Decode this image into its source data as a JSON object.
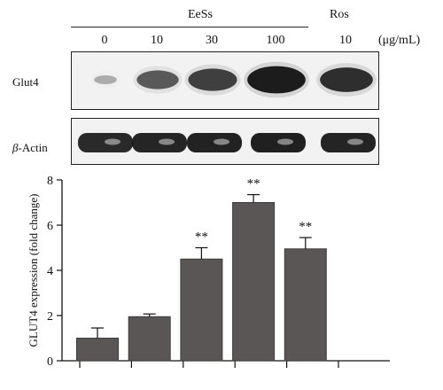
{
  "figure": {
    "header": {
      "group_eess": "EeSs",
      "group_ros": "Ros",
      "unit": "(μg/mL)",
      "lanes": [
        "0",
        "10",
        "30",
        "100",
        "10"
      ]
    },
    "blots": {
      "glut4_label": "Glut4",
      "beta_actin_label_prefix": "β",
      "beta_actin_label_suffix": "-Actin",
      "glut4_intensity": [
        0.08,
        0.55,
        0.72,
        0.95,
        0.82
      ],
      "beta_actin_intensity": [
        0.9,
        0.92,
        0.94,
        0.95,
        0.93
      ]
    },
    "colors": {
      "bar_fill": "#5a5655",
      "axis": "#111111",
      "band_dark": "#141414",
      "blot_bg": "#f2f2f2"
    }
  },
  "chart_data": {
    "type": "bar",
    "categories": [
      "0 μg/mL EeSs",
      "10 μg/mL EeSs",
      "30 μg/mL EeSs",
      "100 μg/mL EeSs",
      "10 μg/mL Ros"
    ],
    "values": [
      1.0,
      1.95,
      4.5,
      7.0,
      4.95
    ],
    "errors": [
      0.45,
      0.12,
      0.5,
      0.35,
      0.5
    ],
    "significance": [
      "",
      "",
      "**",
      "**",
      "**"
    ],
    "title": "",
    "xlabel": "",
    "ylabel": "GLUT4 expression (fold change)",
    "ylim": [
      0,
      8
    ],
    "yticks": [
      0,
      2,
      4,
      6,
      8
    ],
    "grid": false,
    "legend": "none"
  }
}
